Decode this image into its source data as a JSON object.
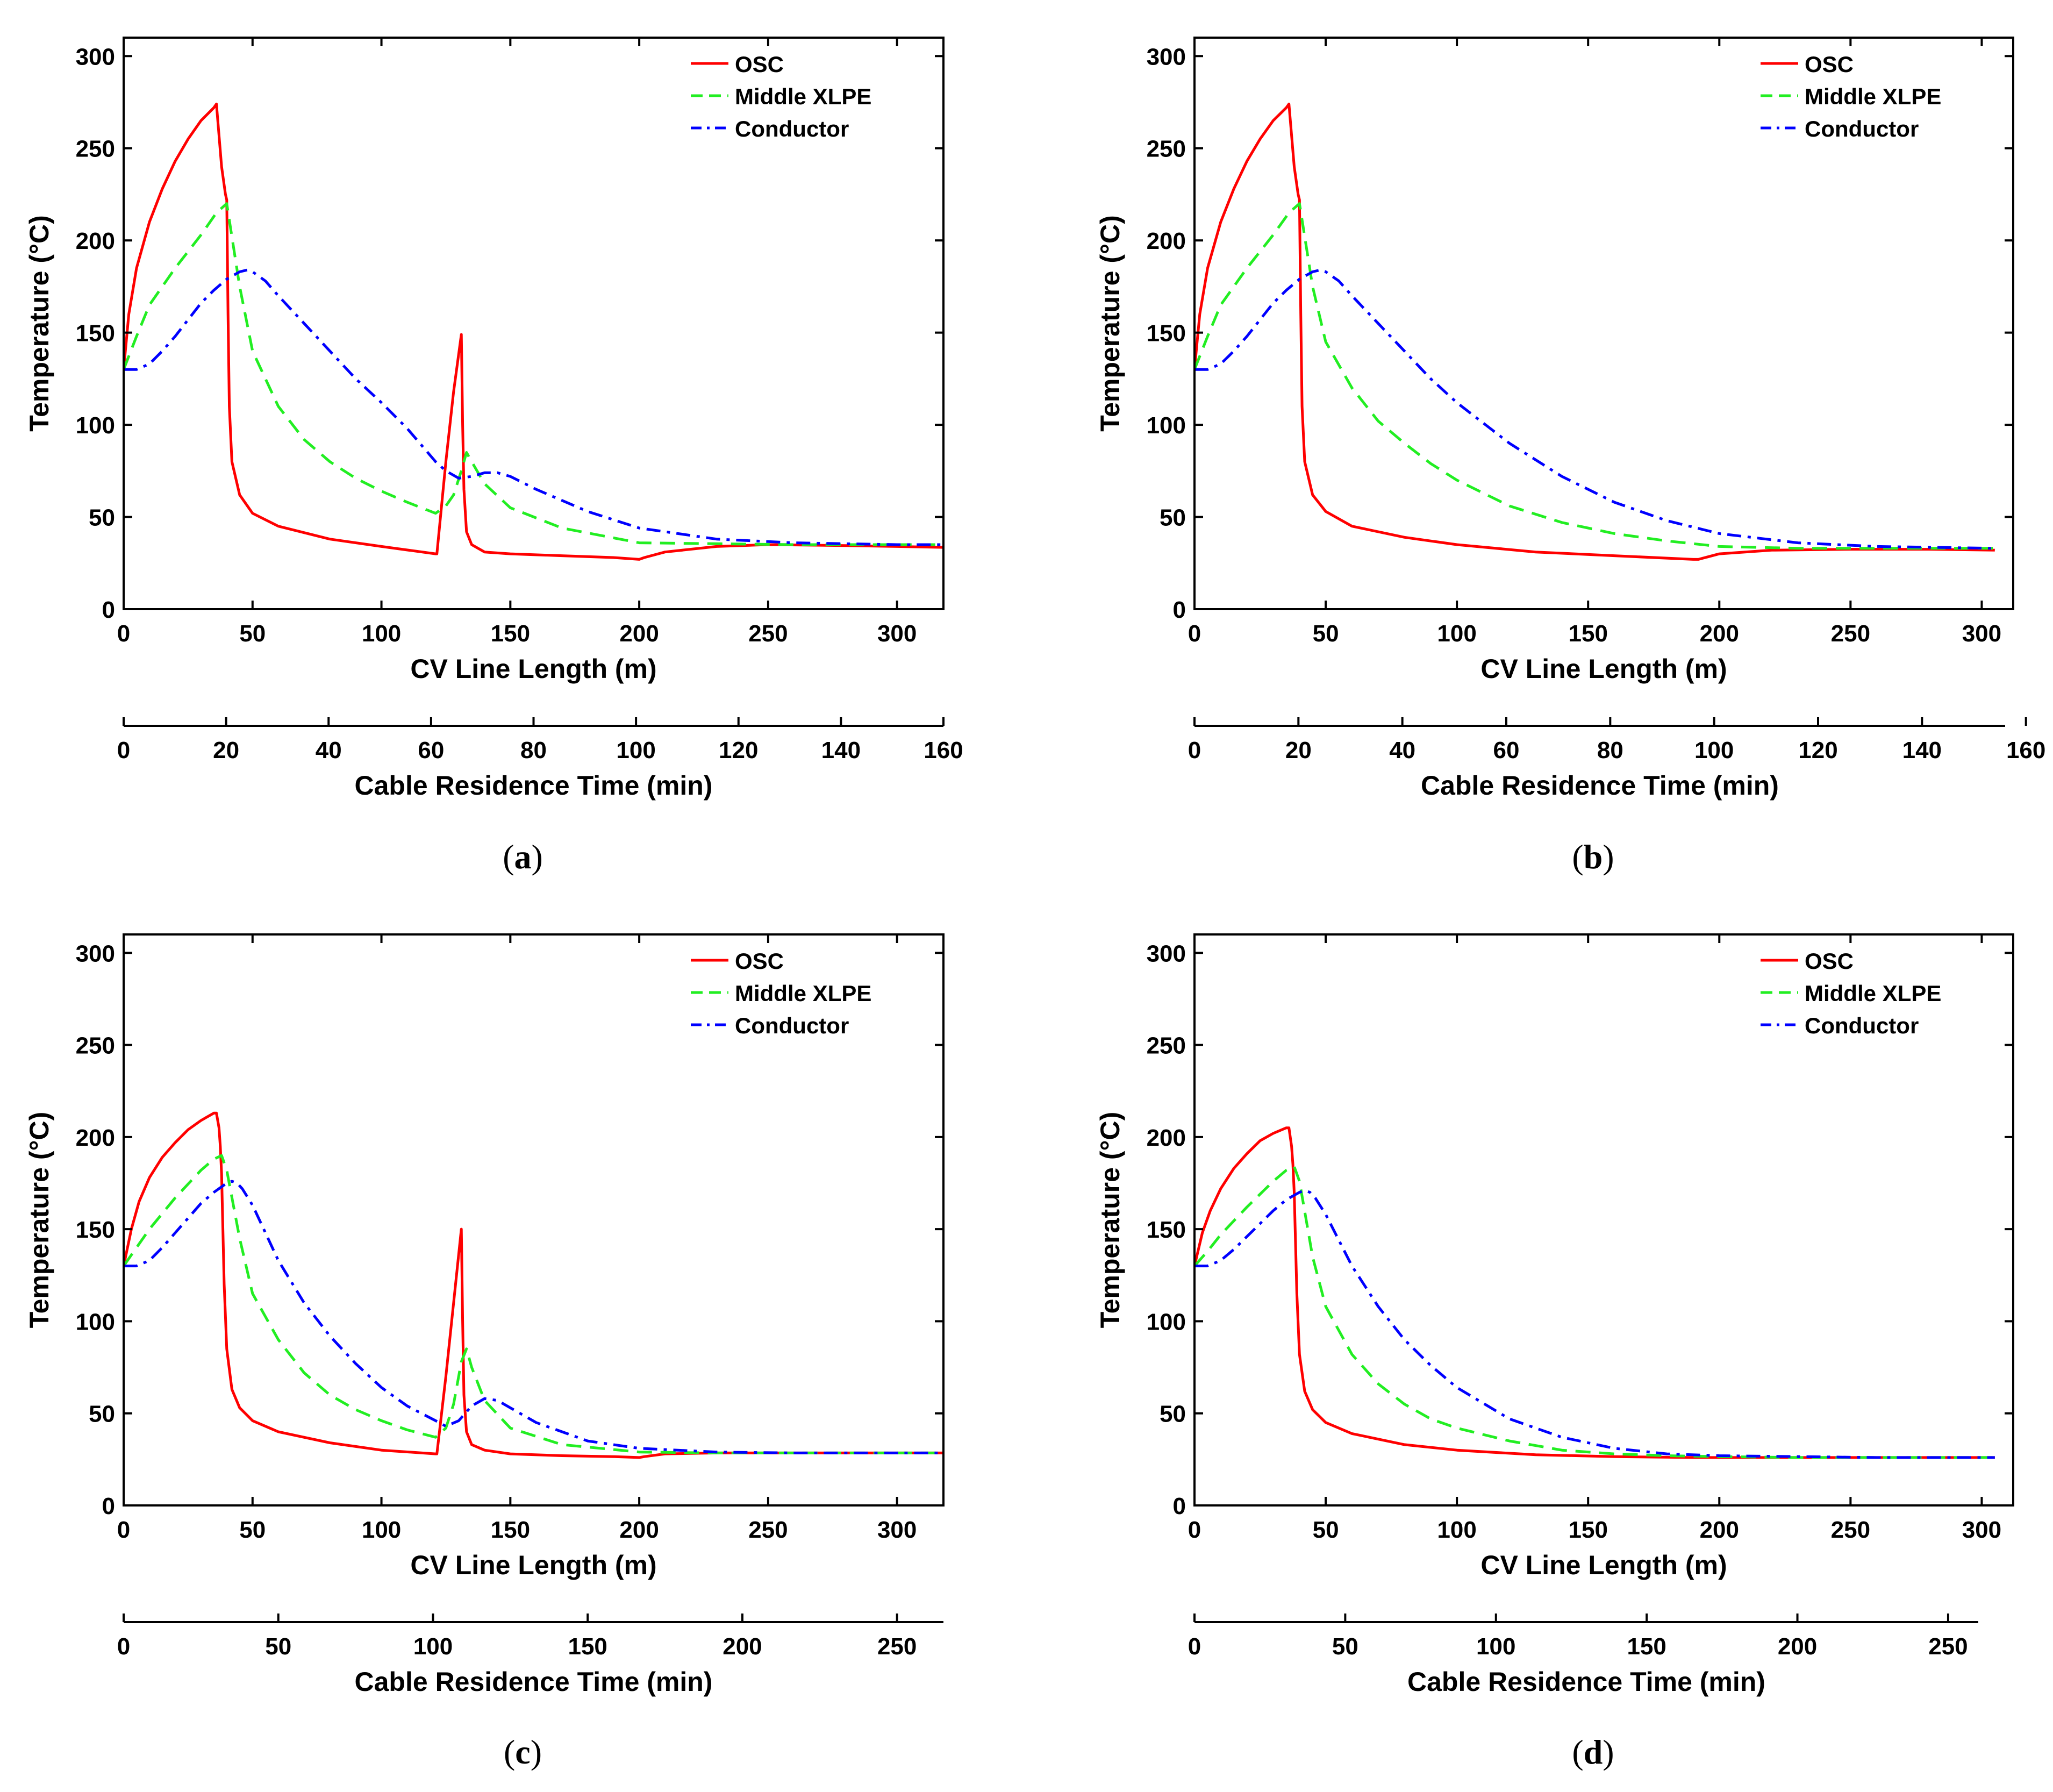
{
  "chart_data": [
    {
      "panel_label": "(a)",
      "type": "line",
      "xlabel": "CV Line Length (m)",
      "ylabel": "Temperature (°C)",
      "xlim": [
        0,
        318
      ],
      "ylim": [
        0,
        310
      ],
      "xticks": [
        0,
        50,
        100,
        150,
        200,
        250,
        300
      ],
      "yticks": [
        0,
        50,
        100,
        150,
        200,
        250,
        300
      ],
      "secondary_x": {
        "label": "Cable Residence Time (min)",
        "lim": [
          0,
          160
        ],
        "ticks": [
          0,
          20,
          40,
          60,
          80,
          100,
          120,
          140,
          160
        ]
      },
      "legend_position": "top-right",
      "series": [
        {
          "name": "OSC",
          "color": "#ff0000",
          "style": "solid",
          "x": [
            0,
            2,
            5,
            10,
            15,
            20,
            25,
            30,
            35,
            36,
            38,
            39.5,
            40,
            40.5,
            41,
            42,
            45,
            50,
            60,
            80,
            100,
            121,
            121.5,
            125,
            128,
            131,
            131.5,
            132,
            133,
            135,
            140,
            150,
            170,
            190,
            200,
            202,
            210,
            230,
            250,
            280,
            300,
            318
          ],
          "y": [
            130,
            160,
            185,
            210,
            228,
            243,
            255,
            265,
            272,
            274,
            240,
            225,
            222,
            160,
            110,
            80,
            62,
            52,
            45,
            38,
            34,
            30,
            30,
            80,
            118,
            149,
            100,
            65,
            42,
            35,
            31,
            30,
            29,
            28,
            27,
            28,
            31,
            34,
            35,
            34.5,
            34,
            33.5
          ]
        },
        {
          "name": "Middle XLPE",
          "color": "#22ee22",
          "style": "dashed",
          "x": [
            0,
            5,
            10,
            20,
            30,
            36,
            40,
            45,
            50,
            60,
            70,
            80,
            90,
            100,
            110,
            121,
            125,
            128,
            131,
            133,
            135,
            140,
            150,
            170,
            200,
            230,
            260,
            300,
            318
          ],
          "y": [
            130,
            148,
            165,
            185,
            203,
            215,
            220,
            175,
            140,
            110,
            92,
            80,
            71,
            64,
            58,
            52,
            56,
            62,
            75,
            85,
            80,
            68,
            55,
            44,
            36,
            35.5,
            35,
            35,
            35
          ]
        },
        {
          "name": "Conductor",
          "color": "#0000ff",
          "style": "dashdot",
          "x": [
            0,
            5,
            10,
            15,
            20,
            25,
            30,
            35,
            40,
            45,
            48,
            50,
            55,
            60,
            70,
            80,
            90,
            100,
            110,
            121,
            125,
            130,
            135,
            140,
            145,
            150,
            160,
            180,
            200,
            230,
            260,
            300,
            318
          ],
          "y": [
            130,
            130,
            133,
            140,
            148,
            157,
            166,
            173,
            179,
            183,
            184,
            183,
            178,
            170,
            155,
            140,
            125,
            112,
            98,
            80,
            75,
            71,
            72,
            74,
            74,
            72,
            65,
            53,
            44,
            38,
            36,
            35,
            35
          ]
        }
      ]
    },
    {
      "panel_label": "(b)",
      "type": "line",
      "xlabel": "CV Line Length (m)",
      "ylabel": "Temperature (°C)",
      "xlim": [
        0,
        312
      ],
      "ylim": [
        0,
        310
      ],
      "xticks": [
        0,
        50,
        100,
        150,
        200,
        250,
        300
      ],
      "yticks": [
        0,
        50,
        100,
        150,
        200,
        250,
        300
      ],
      "secondary_x": {
        "label": "Cable Residence Time (min)",
        "lim": [
          0,
          156
        ],
        "ticks": [
          0,
          20,
          40,
          60,
          80,
          100,
          120,
          140,
          160
        ]
      },
      "legend_position": "top-right",
      "series": [
        {
          "name": "OSC",
          "color": "#ff0000",
          "style": "solid",
          "x": [
            0,
            2,
            5,
            10,
            15,
            20,
            25,
            30,
            35,
            36,
            38,
            39.5,
            40,
            40.5,
            41,
            42,
            45,
            50,
            60,
            80,
            100,
            130,
            160,
            190,
            192,
            200,
            220,
            250,
            280,
            305
          ],
          "y": [
            130,
            160,
            185,
            210,
            228,
            243,
            255,
            265,
            272,
            274,
            240,
            225,
            222,
            160,
            110,
            80,
            62,
            53,
            45,
            39,
            35,
            31,
            29,
            27,
            27,
            30,
            32,
            32.5,
            32.5,
            32
          ]
        },
        {
          "name": "Middle XLPE",
          "color": "#22ee22",
          "style": "dashed",
          "x": [
            0,
            5,
            10,
            20,
            30,
            36,
            40,
            45,
            50,
            60,
            70,
            80,
            90,
            100,
            120,
            140,
            160,
            180,
            200,
            230,
            260,
            305
          ],
          "y": [
            130,
            148,
            165,
            185,
            203,
            215,
            220,
            175,
            145,
            120,
            102,
            90,
            79,
            70,
            56,
            47,
            41,
            37,
            34,
            33,
            33,
            33
          ]
        },
        {
          "name": "Conductor",
          "color": "#0000ff",
          "style": "dashdot",
          "x": [
            0,
            5,
            10,
            15,
            20,
            25,
            30,
            35,
            40,
            45,
            48,
            50,
            55,
            60,
            70,
            80,
            90,
            100,
            120,
            140,
            160,
            180,
            200,
            230,
            260,
            305
          ],
          "y": [
            130,
            130,
            133,
            140,
            148,
            157,
            166,
            173,
            179,
            183,
            184,
            183,
            178,
            170,
            155,
            140,
            125,
            112,
            90,
            72,
            58,
            48,
            41,
            36,
            34,
            33
          ]
        }
      ]
    },
    {
      "panel_label": "(c)",
      "type": "line",
      "xlabel": "CV Line Length (m)",
      "ylabel": "Temperature (°C)",
      "xlim": [
        0,
        318
      ],
      "ylim": [
        0,
        310
      ],
      "xticks": [
        0,
        50,
        100,
        150,
        200,
        250,
        300
      ],
      "yticks": [
        0,
        50,
        100,
        150,
        200,
        250,
        300
      ],
      "secondary_x": {
        "label": "Cable Residence Time (min)",
        "lim": [
          0,
          265
        ],
        "ticks": [
          0,
          50,
          100,
          150,
          200,
          250
        ]
      },
      "legend_position": "top-right",
      "series": [
        {
          "name": "OSC",
          "color": "#ff0000",
          "style": "solid",
          "x": [
            0,
            3,
            6,
            10,
            15,
            20,
            25,
            30,
            35,
            36,
            37,
            37.5,
            38,
            39,
            40,
            42,
            45,
            50,
            60,
            80,
            100,
            121,
            121.5,
            125,
            128,
            131,
            131.5,
            132,
            133,
            135,
            140,
            150,
            170,
            190,
            200,
            202,
            210,
            230,
            260,
            300,
            318
          ],
          "y": [
            130,
            150,
            165,
            178,
            189,
            197,
            204,
            209,
            213,
            213,
            205,
            195,
            180,
            120,
            85,
            63,
            53,
            46,
            40,
            34,
            30,
            28,
            28,
            70,
            110,
            150,
            100,
            60,
            40,
            33,
            30,
            28,
            27,
            26.5,
            26,
            26.5,
            28,
            28.5,
            28.5,
            28.5,
            28.5
          ]
        },
        {
          "name": "Middle XLPE",
          "color": "#22ee22",
          "style": "dashed",
          "x": [
            0,
            5,
            10,
            20,
            30,
            35,
            38,
            40,
            45,
            50,
            60,
            70,
            80,
            90,
            100,
            110,
            121,
            125,
            128,
            131,
            133,
            135,
            140,
            150,
            170,
            200,
            230,
            260,
            300,
            318
          ],
          "y": [
            130,
            140,
            150,
            167,
            182,
            188,
            190,
            182,
            145,
            115,
            90,
            72,
            60,
            52,
            46,
            41,
            37,
            42,
            55,
            78,
            85,
            75,
            57,
            42,
            33,
            29,
            28.5,
            28.5,
            28.5,
            28.5
          ]
        },
        {
          "name": "Conductor",
          "color": "#0000ff",
          "style": "dashdot",
          "x": [
            0,
            5,
            10,
            15,
            20,
            25,
            30,
            35,
            40,
            42,
            44,
            46,
            50,
            55,
            60,
            70,
            80,
            90,
            100,
            110,
            121,
            125,
            130,
            135,
            140,
            145,
            150,
            160,
            180,
            200,
            230,
            260,
            300,
            318
          ],
          "y": [
            130,
            130,
            133,
            140,
            148,
            156,
            164,
            170,
            175,
            176,
            175,
            172,
            163,
            148,
            133,
            110,
            92,
            77,
            64,
            54,
            46,
            43,
            46,
            54,
            58,
            57,
            53,
            45,
            35,
            31,
            29,
            28.5,
            28.5,
            28.5
          ]
        }
      ]
    },
    {
      "panel_label": "(d)",
      "type": "line",
      "xlabel": "CV Line Length (m)",
      "ylabel": "Temperature (°C)",
      "xlim": [
        0,
        312
      ],
      "ylim": [
        0,
        310
      ],
      "xticks": [
        0,
        50,
        100,
        150,
        200,
        250,
        300
      ],
      "yticks": [
        0,
        50,
        100,
        150,
        200,
        250,
        300
      ],
      "secondary_x": {
        "label": "Cable Residence Time (min)",
        "lim": [
          0,
          260
        ],
        "ticks": [
          0,
          50,
          100,
          150,
          200,
          250
        ]
      },
      "legend_position": "top-right",
      "series": [
        {
          "name": "OSC",
          "color": "#ff0000",
          "style": "solid",
          "x": [
            0,
            3,
            6,
            10,
            15,
            20,
            25,
            30,
            35,
            36,
            37,
            37.5,
            38,
            39,
            40,
            42,
            45,
            50,
            60,
            80,
            100,
            130,
            160,
            190,
            220,
            260,
            305
          ],
          "y": [
            130,
            148,
            160,
            172,
            183,
            191,
            198,
            202,
            205,
            205,
            195,
            185,
            170,
            115,
            82,
            62,
            52,
            45,
            39,
            33,
            30,
            27.5,
            26.5,
            26,
            26,
            26,
            26
          ]
        },
        {
          "name": "Middle XLPE",
          "color": "#22ee22",
          "style": "dashed",
          "x": [
            0,
            5,
            10,
            20,
            30,
            35,
            38,
            40,
            45,
            50,
            60,
            70,
            80,
            90,
            100,
            120,
            140,
            160,
            180,
            200,
            230,
            260,
            305
          ],
          "y": [
            130,
            138,
            147,
            162,
            176,
            182,
            184,
            176,
            135,
            108,
            82,
            66,
            55,
            47,
            42,
            35,
            30,
            28,
            27,
            26.5,
            26,
            26,
            26
          ]
        },
        {
          "name": "Conductor",
          "color": "#0000ff",
          "style": "dashdot",
          "x": [
            0,
            5,
            10,
            15,
            20,
            25,
            30,
            35,
            40,
            42,
            44,
            46,
            50,
            55,
            60,
            70,
            80,
            90,
            100,
            120,
            140,
            160,
            180,
            200,
            230,
            260,
            305
          ],
          "y": [
            130,
            130,
            133,
            139,
            146,
            153,
            160,
            166,
            170,
            171,
            170,
            167,
            158,
            144,
            130,
            108,
            90,
            76,
            64,
            47,
            37,
            31,
            28,
            27,
            26.5,
            26,
            26
          ]
        }
      ]
    }
  ]
}
